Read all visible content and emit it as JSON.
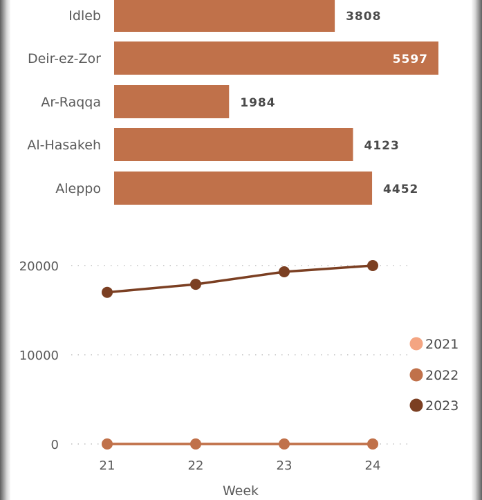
{
  "chart_data": [
    {
      "type": "bar",
      "orientation": "horizontal",
      "categories": [
        "Idleb",
        "Deir-ez-Zor",
        "Ar-Raqqa",
        "Al-Hasakeh",
        "Aleppo"
      ],
      "values": [
        3808,
        5597,
        1984,
        4123,
        4452
      ],
      "color": "#c0714a",
      "data_labels": true
    },
    {
      "type": "line",
      "x": [
        21,
        22,
        23,
        24
      ],
      "xlabel": "Week",
      "ylabel": "",
      "ylim": [
        0,
        20000
      ],
      "yticks": [
        0,
        10000,
        20000
      ],
      "grid": "dotted horizontal",
      "legend_position": "right",
      "series": [
        {
          "name": "2021",
          "values": [
            0,
            0,
            0,
            0
          ],
          "color": "#f4a582"
        },
        {
          "name": "2022",
          "values": [
            0,
            0,
            0,
            0
          ],
          "color": "#c0714a"
        },
        {
          "name": "2023",
          "values": [
            17000,
            17900,
            19300,
            20000
          ],
          "color": "#7b3f22"
        }
      ]
    }
  ]
}
